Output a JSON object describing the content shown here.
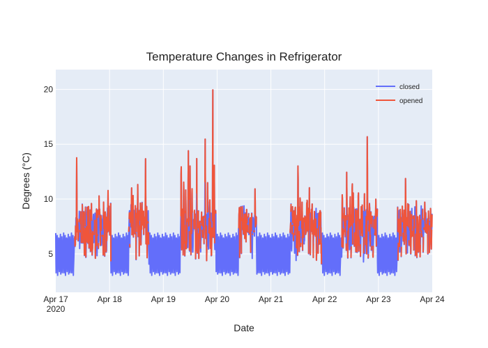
{
  "chart_data": {
    "type": "line",
    "title": "Temperature Changes in Refrigerator",
    "xlabel": "Date",
    "ylabel": "Degrees (°C)",
    "x_range": [
      "2020-04-17",
      "2020-04-24"
    ],
    "ylim": [
      1.5,
      21.8
    ],
    "x_ticks": [
      {
        "date": "2020-04-17",
        "label": "Apr 17",
        "sublabel": "2020"
      },
      {
        "date": "2020-04-18",
        "label": "Apr 18"
      },
      {
        "date": "2020-04-19",
        "label": "Apr 19"
      },
      {
        "date": "2020-04-20",
        "label": "Apr 20"
      },
      {
        "date": "2020-04-21",
        "label": "Apr 21"
      },
      {
        "date": "2020-04-22",
        "label": "Apr 22"
      },
      {
        "date": "2020-04-23",
        "label": "Apr 23"
      },
      {
        "date": "2020-04-24",
        "label": "Apr 24"
      }
    ],
    "y_ticks": [
      5,
      10,
      15,
      20
    ],
    "grid": true,
    "legend_position": "top-right",
    "series": [
      {
        "name": "closed",
        "color": "#636efa"
      },
      {
        "name": "opened",
        "color": "#ef553b"
      }
    ],
    "activity_windows": [
      {
        "start": "2020-04-17T08:30",
        "end": "2020-04-18T00:30",
        "peak": 13.9
      },
      {
        "start": "2020-04-18T08:30",
        "end": "2020-04-18T17:30",
        "peak": 14.8
      },
      {
        "start": "2020-04-19T07:30",
        "end": "2020-04-19T23:30",
        "peak": 20.7
      },
      {
        "start": "2020-04-20T09:30",
        "end": "2020-04-20T17:30",
        "peak": 11.5
      },
      {
        "start": "2020-04-21T08:30",
        "end": "2020-04-21T22:30",
        "peak": 14.2
      },
      {
        "start": "2020-04-22T07:30",
        "end": "2020-04-22T23:30",
        "peak": 16.7
      },
      {
        "start": "2020-04-23T08:30",
        "end": "2020-04-24T00:00",
        "peak": 12.5
      }
    ],
    "compressor_cycle": {
      "period_hours": 0.7,
      "min": 3.0,
      "max": 6.9
    }
  }
}
